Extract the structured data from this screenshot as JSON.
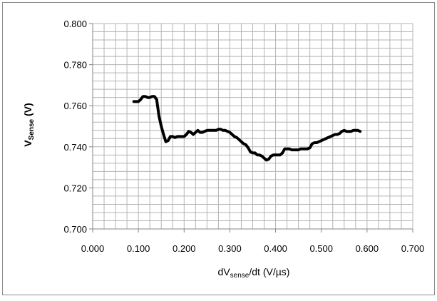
{
  "chart_data": {
    "type": "line",
    "title": "",
    "xlabel": {
      "prefix": "dV",
      "subscript": "sense",
      "suffix": "/dt (V/µs)"
    },
    "ylabel": {
      "prefix": "V",
      "subscript": "Sense",
      "suffix": " (V)"
    },
    "xlim": [
      0.0,
      0.7
    ],
    "ylim": [
      0.7,
      0.8
    ],
    "x_ticks": [
      "0.000",
      "0.100",
      "0.200",
      "0.300",
      "0.400",
      "0.500",
      "0.600",
      "0.700"
    ],
    "y_ticks": [
      "0.700",
      "0.720",
      "0.740",
      "0.760",
      "0.780",
      "0.800"
    ],
    "grid": true,
    "minor_grid": true,
    "legend": "none",
    "line_color": "#000000",
    "border_color": "#8c8c8c",
    "grid_color": "#b4b4b4",
    "series": [
      {
        "x": [
          0.09,
          0.1,
          0.105,
          0.11,
          0.115,
          0.12,
          0.125,
          0.13,
          0.135,
          0.14,
          0.145,
          0.15,
          0.155,
          0.16,
          0.165,
          0.17,
          0.175,
          0.18,
          0.185,
          0.19,
          0.195,
          0.2,
          0.205,
          0.21,
          0.215,
          0.22,
          0.225,
          0.23,
          0.235,
          0.24,
          0.245,
          0.25,
          0.255,
          0.26,
          0.265,
          0.27,
          0.275,
          0.28,
          0.285,
          0.29,
          0.295,
          0.3,
          0.305,
          0.31,
          0.315,
          0.32,
          0.325,
          0.33,
          0.335,
          0.34,
          0.345,
          0.35,
          0.355,
          0.36,
          0.365,
          0.37,
          0.375,
          0.38,
          0.385,
          0.39,
          0.395,
          0.4,
          0.405,
          0.41,
          0.415,
          0.42,
          0.425,
          0.43,
          0.435,
          0.44,
          0.445,
          0.45,
          0.455,
          0.46,
          0.465,
          0.47,
          0.475,
          0.48,
          0.485,
          0.49,
          0.495,
          0.5,
          0.505,
          0.51,
          0.515,
          0.52,
          0.525,
          0.53,
          0.535,
          0.54,
          0.545,
          0.55,
          0.555,
          0.56,
          0.565,
          0.57,
          0.575,
          0.58,
          0.585
        ],
        "y": [
          0.762,
          0.762,
          0.763,
          0.7645,
          0.7645,
          0.764,
          0.764,
          0.7645,
          0.7645,
          0.763,
          0.755,
          0.75,
          0.746,
          0.7425,
          0.743,
          0.745,
          0.745,
          0.7445,
          0.745,
          0.745,
          0.745,
          0.745,
          0.746,
          0.7475,
          0.747,
          0.746,
          0.747,
          0.748,
          0.747,
          0.747,
          0.7475,
          0.748,
          0.748,
          0.748,
          0.748,
          0.748,
          0.7485,
          0.7485,
          0.748,
          0.748,
          0.7475,
          0.747,
          0.746,
          0.745,
          0.7445,
          0.7435,
          0.7425,
          0.7415,
          0.741,
          0.7395,
          0.7375,
          0.737,
          0.737,
          0.736,
          0.736,
          0.7355,
          0.7345,
          0.7335,
          0.734,
          0.7355,
          0.736,
          0.736,
          0.736,
          0.736,
          0.737,
          0.739,
          0.739,
          0.739,
          0.7385,
          0.7385,
          0.7385,
          0.7385,
          0.739,
          0.739,
          0.739,
          0.739,
          0.7395,
          0.7415,
          0.742,
          0.742,
          0.7425,
          0.743,
          0.7435,
          0.744,
          0.7445,
          0.745,
          0.7455,
          0.746,
          0.746,
          0.7465,
          0.7475,
          0.748,
          0.7475,
          0.7475,
          0.7475,
          0.748,
          0.748,
          0.748,
          0.7475
        ]
      }
    ]
  }
}
